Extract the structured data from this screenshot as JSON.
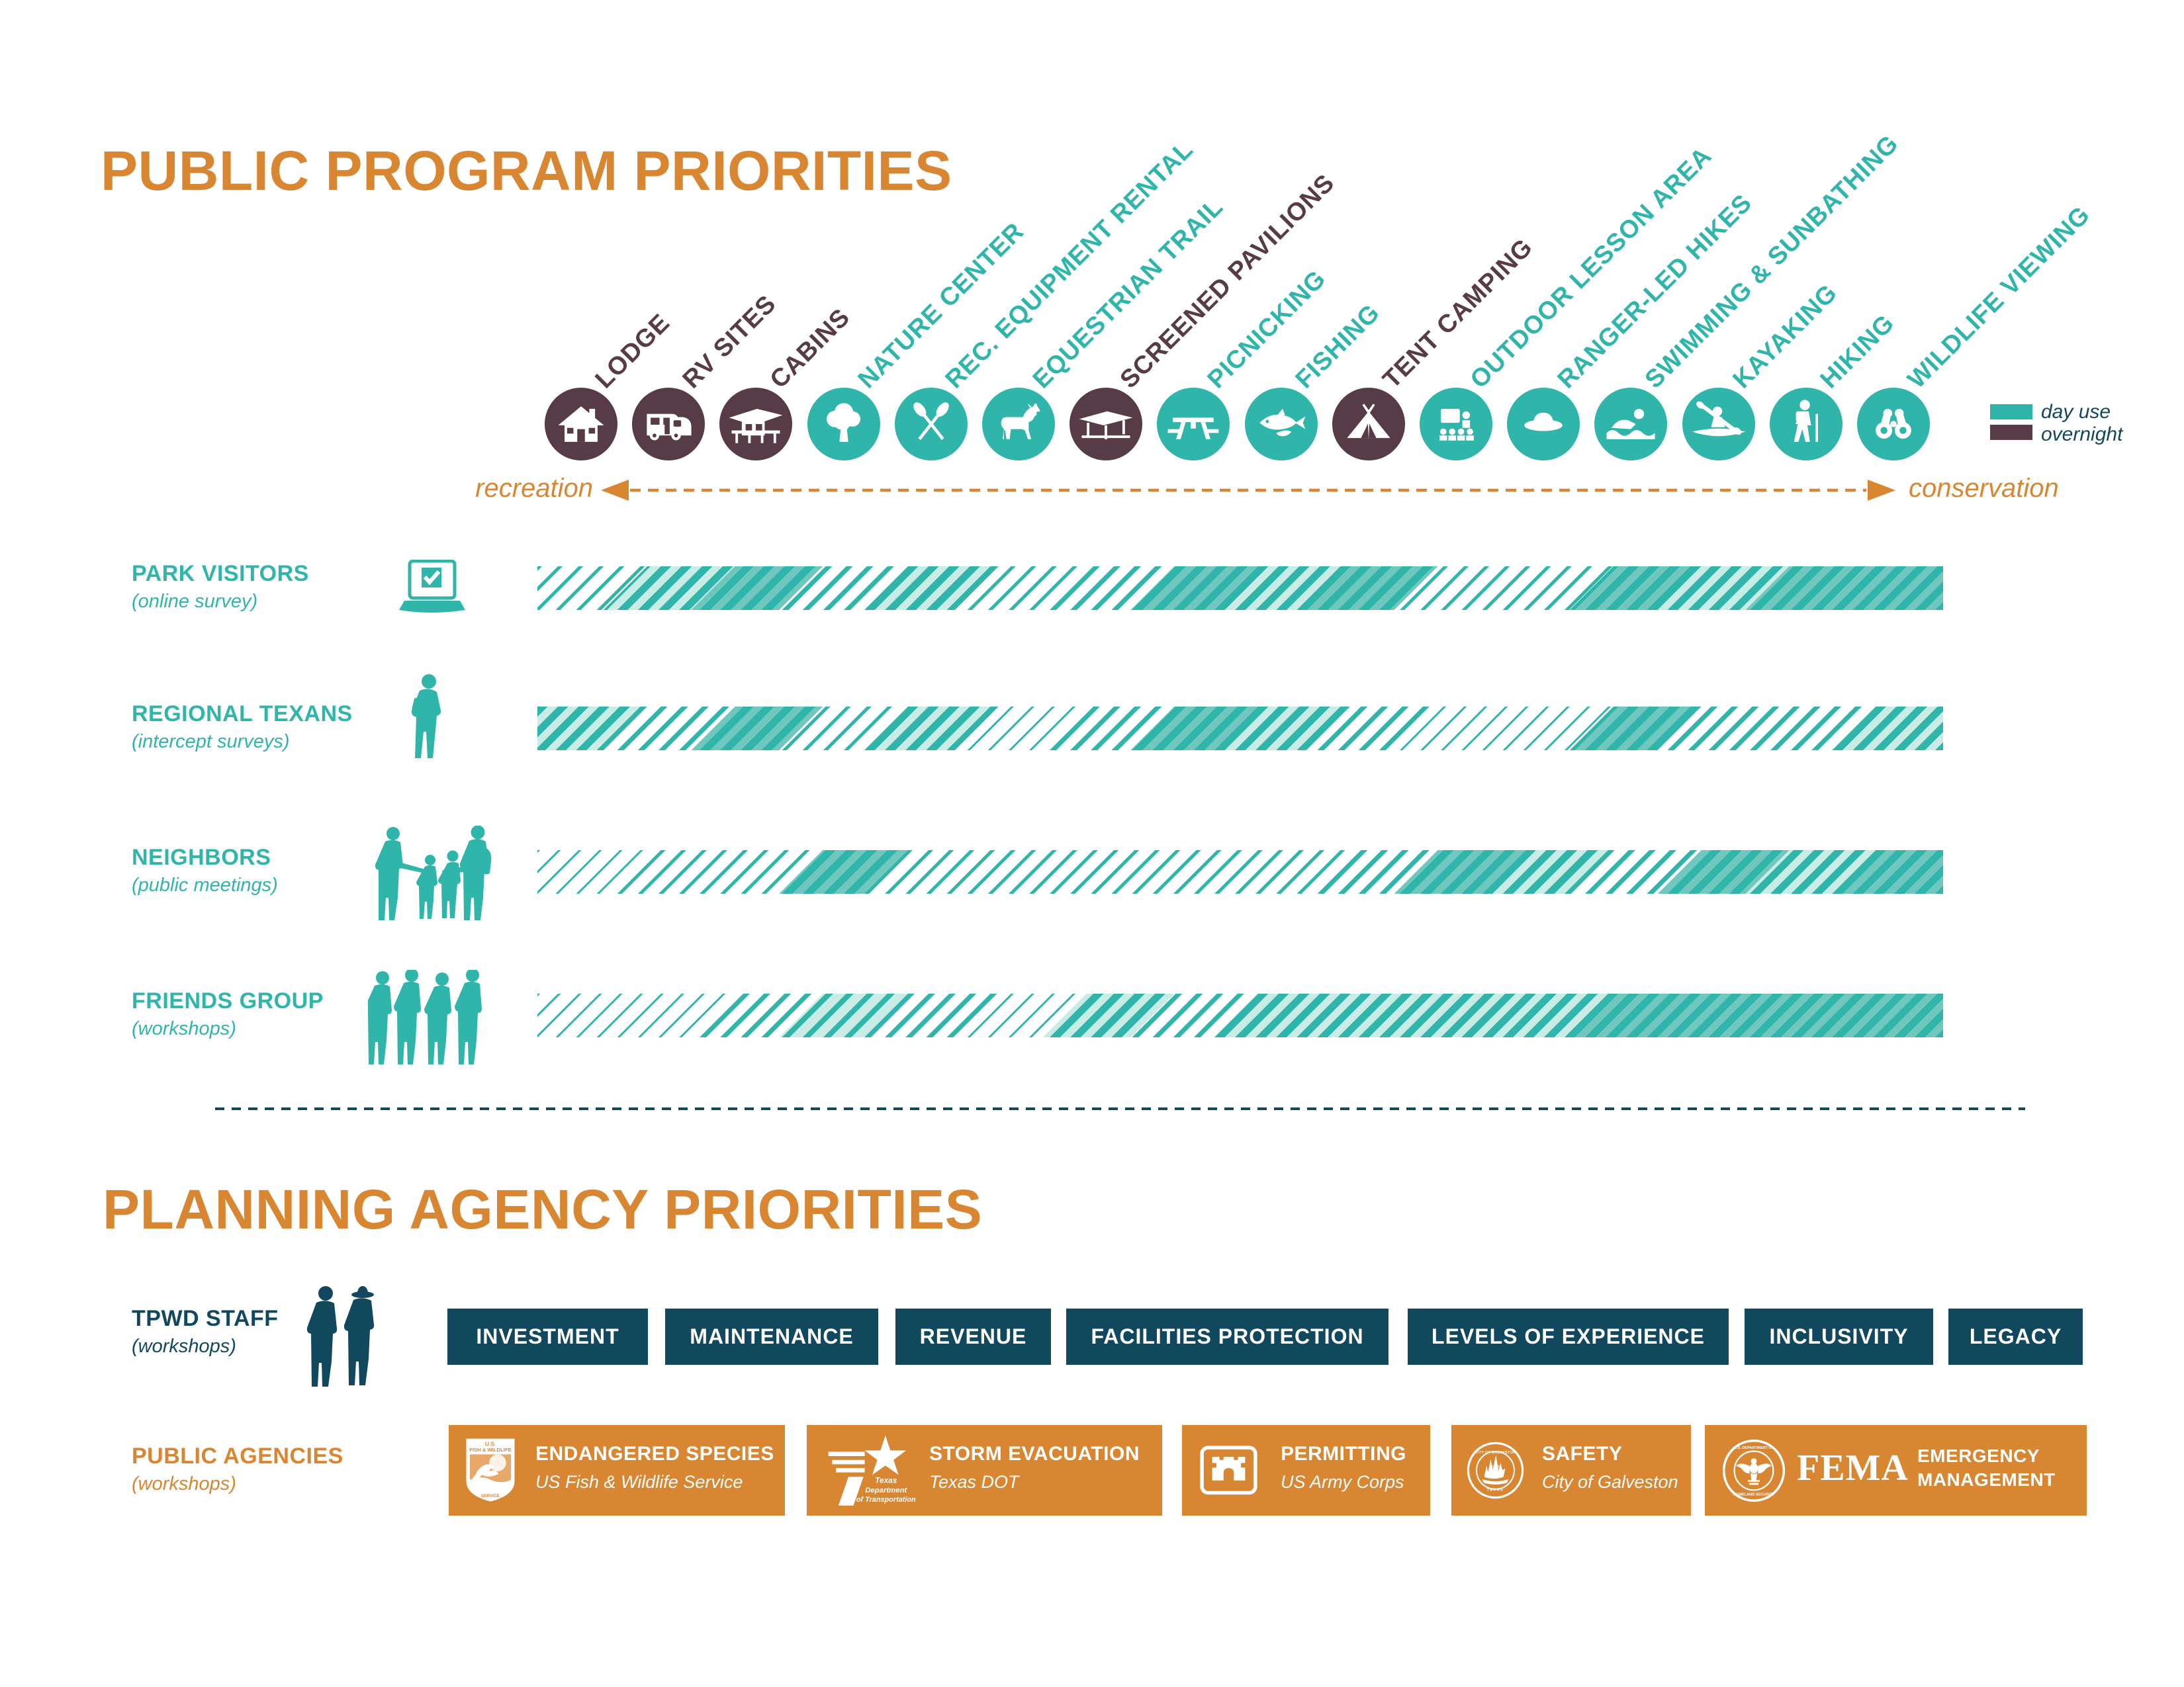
{
  "title": "PUBLIC PROGRAM PRIORITIES",
  "legend": {
    "day_use_label": "day use",
    "overnight_label": "overnight"
  },
  "axis": {
    "left_label": "recreation",
    "right_label": "conservation"
  },
  "programs": [
    {
      "label": "LODGE",
      "use": "overnight",
      "icon": "lodge-icon"
    },
    {
      "label": "RV SITES",
      "use": "overnight",
      "icon": "rv-icon"
    },
    {
      "label": "CABINS",
      "use": "overnight",
      "icon": "cabin-icon"
    },
    {
      "label": "NATURE CENTER",
      "use": "day",
      "icon": "tree-icon"
    },
    {
      "label": "REC. EQUIPMENT RENTAL",
      "use": "day",
      "icon": "paddles-icon"
    },
    {
      "label": "EQUESTRIAN TRAIL",
      "use": "day",
      "icon": "horse-icon"
    },
    {
      "label": "SCREENED PAVILIONS",
      "use": "overnight",
      "icon": "pavilion-icon"
    },
    {
      "label": "PICNICKING",
      "use": "day",
      "icon": "picnic-table-icon"
    },
    {
      "label": "FISHING",
      "use": "day",
      "icon": "fish-icon"
    },
    {
      "label": "TENT CAMPING",
      "use": "overnight",
      "icon": "tent-icon"
    },
    {
      "label": "OUTDOOR LESSON AREA",
      "use": "day",
      "icon": "lesson-icon"
    },
    {
      "label": "RANGER-LED HIKES",
      "use": "day",
      "icon": "ranger-hat-icon"
    },
    {
      "label": "SWIMMING & SUNBATHING",
      "use": "day",
      "icon": "swimmer-icon"
    },
    {
      "label": "KAYAKING",
      "use": "day",
      "icon": "kayak-icon"
    },
    {
      "label": "HIKING",
      "use": "day",
      "icon": "hiker-icon"
    },
    {
      "label": "WILDLIFE VIEWING",
      "use": "day",
      "icon": "binoculars-icon"
    }
  ],
  "groups": [
    {
      "label": "PARK VISITORS",
      "sublabel": "(online survey)",
      "icon": "laptop-survey-icon",
      "levels": [
        2,
        4,
        5,
        3,
        4,
        2,
        3,
        5,
        4,
        5,
        2,
        2,
        5,
        4,
        5,
        5
      ]
    },
    {
      "label": "REGIONAL TEXANS",
      "sublabel": "(intercept surveys)",
      "icon": "person-survey-icon",
      "levels": [
        4,
        3,
        5,
        2,
        4,
        1,
        3,
        5,
        4,
        3,
        1,
        1,
        5,
        3,
        3,
        4
      ]
    },
    {
      "label": "NEIGHBORS",
      "sublabel": "(public meetings)",
      "icon": "family-icon",
      "levels": [
        1,
        2,
        2,
        5,
        2,
        2,
        2,
        2,
        2,
        3,
        5,
        4,
        3,
        5,
        4,
        5
      ]
    },
    {
      "label": "FRIENDS GROUP",
      "sublabel": "(workshops)",
      "icon": "group-icon",
      "levels": [
        1,
        1,
        3,
        6,
        3,
        1,
        4,
        3,
        4,
        4,
        4,
        4,
        5,
        5,
        5,
        5
      ]
    }
  ],
  "priority_levels_note": "1=sparse hatch (lowest priority) to 5=dense fill (highest priority); 6=light striped fill",
  "planning": {
    "title": "PLANNING AGENCY PRIORITIES",
    "tpwd": {
      "label": "TPWD STAFF",
      "sublabel": "(workshops)",
      "icon": "rangers-icon",
      "topics": [
        "INVESTMENT",
        "MAINTENANCE",
        "REVENUE",
        "FACILITIES PROTECTION",
        "LEVELS OF EXPERIENCE",
        "INCLUSIVITY",
        "LEGACY"
      ]
    },
    "agencies": {
      "label": "PUBLIC AGENCIES",
      "sublabel": "(workshops)",
      "items": [
        {
          "title": "ENDANGERED SPECIES",
          "subtitle": "US Fish & Wildlife Service",
          "logo": "usfws-logo-icon"
        },
        {
          "title": "STORM EVACUATION",
          "subtitle": "Texas DOT",
          "logo": "txdot-logo-icon"
        },
        {
          "title": "PERMITTING",
          "subtitle": "US Army Corps",
          "logo": "usace-logo-icon"
        },
        {
          "title": "SAFETY",
          "subtitle": "City of Galveston",
          "logo": "galveston-seal-icon"
        },
        {
          "title": "FEMA",
          "subtitle": "EMERGENCY MANAGEMENT",
          "logo": "dhs-seal-icon",
          "style": "fema"
        }
      ]
    }
  },
  "colors": {
    "teal": "#2FB5A9",
    "teal_medium": "#70C7BD",
    "teal_pale": "#C9ECE7",
    "plum": "#573B47",
    "navy": "#12485E",
    "orange": "#D98632",
    "background": "#FFFFFF"
  }
}
